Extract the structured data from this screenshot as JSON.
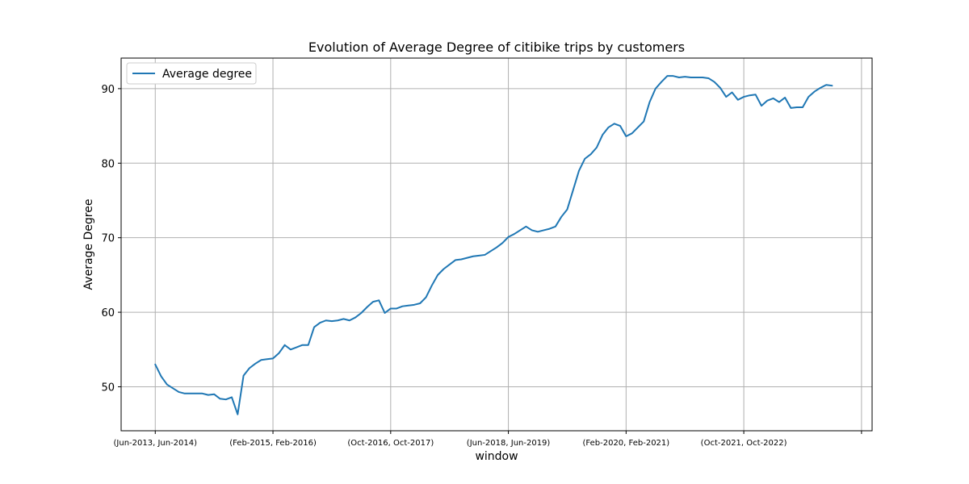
{
  "chart_data": {
    "type": "line",
    "title": "Evolution of Average Degree of citibike trips by customers",
    "xlabel": "window",
    "ylabel": "Average Degree",
    "legend": {
      "placement": "top-left",
      "entries": [
        "Average degree"
      ]
    },
    "grid": true,
    "ylim": [
      44.1,
      94.1
    ],
    "y_ticks": [
      50,
      60,
      70,
      80,
      90
    ],
    "x_tick_positions": [
      0,
      20,
      40,
      60,
      80,
      100,
      120
    ],
    "x_tick_labels": [
      "(Jun-2013, Jun-2014)",
      "(Feb-2015, Feb-2016)",
      "(Oct-2016, Oct-2017)",
      "(Jun-2018, Jun-2019)",
      "(Feb-2020, Feb-2021)",
      "(Oct-2021, Oct-2022)",
      ""
    ],
    "xlim": [
      -5.8,
      121.8
    ],
    "series": [
      {
        "name": "Average degree",
        "color": "#1f77b4",
        "x": [
          0,
          1,
          2,
          3,
          4,
          5,
          6,
          7,
          8,
          9,
          10,
          11,
          12,
          13,
          14,
          15,
          16,
          17,
          18,
          19,
          20,
          21,
          22,
          23,
          24,
          25,
          26,
          27,
          28,
          29,
          30,
          31,
          32,
          33,
          34,
          35,
          36,
          37,
          38,
          39,
          40,
          41,
          42,
          43,
          44,
          45,
          46,
          47,
          48,
          49,
          50,
          51,
          52,
          53,
          54,
          55,
          56,
          57,
          58,
          59,
          60,
          61,
          62,
          63,
          64,
          65,
          66,
          67,
          68,
          69,
          70,
          71,
          72,
          73,
          74,
          75,
          76,
          77,
          78,
          79,
          80,
          81,
          82,
          83,
          84,
          85,
          86,
          87,
          88,
          89,
          90,
          91,
          92,
          93,
          94,
          95,
          96,
          97,
          98,
          99,
          100,
          101,
          102,
          103,
          104,
          105,
          106,
          107,
          108,
          109,
          110,
          111,
          112,
          113,
          114,
          115
        ],
        "values": [
          53.0,
          51.4,
          50.3,
          49.8,
          49.3,
          49.1,
          49.1,
          49.1,
          49.1,
          48.9,
          49.0,
          48.4,
          48.3,
          48.6,
          46.3,
          51.5,
          52.5,
          53.1,
          53.6,
          53.7,
          53.8,
          54.5,
          55.6,
          55.0,
          55.3,
          55.6,
          55.6,
          58.0,
          58.6,
          58.9,
          58.8,
          58.9,
          59.1,
          58.9,
          59.3,
          59.9,
          60.7,
          61.4,
          61.6,
          59.9,
          60.5,
          60.5,
          60.8,
          60.9,
          61.0,
          61.2,
          62.0,
          63.6,
          65.0,
          65.8,
          66.4,
          67.0,
          67.1,
          67.3,
          67.5,
          67.6,
          67.7,
          68.2,
          68.7,
          69.3,
          70.1,
          70.5,
          71.0,
          71.5,
          71.0,
          70.8,
          71.0,
          71.2,
          71.5,
          72.8,
          73.8,
          76.4,
          79.0,
          80.6,
          81.2,
          82.1,
          83.8,
          84.8,
          85.3,
          85.0,
          83.6,
          84.0,
          84.8,
          85.6,
          88.2,
          90.0,
          90.9,
          91.7,
          91.7,
          91.5,
          91.6,
          91.5,
          91.5,
          91.5,
          91.4,
          90.9,
          90.1,
          88.9,
          89.5,
          88.5,
          88.9,
          89.1,
          89.2,
          87.7,
          88.4,
          88.7,
          88.2,
          88.8,
          87.4,
          87.5,
          87.5,
          88.9,
          89.6,
          90.1,
          90.5,
          90.4
        ]
      }
    ]
  }
}
